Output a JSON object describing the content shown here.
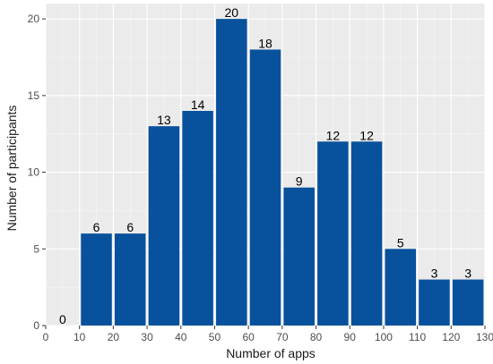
{
  "chart_data": {
    "type": "bar",
    "bin_starts": [
      0,
      10,
      20,
      30,
      40,
      50,
      60,
      70,
      80,
      90,
      100,
      110,
      120
    ],
    "bin_width": 10,
    "values": [
      0,
      6,
      6,
      13,
      14,
      20,
      18,
      9,
      12,
      12,
      5,
      3,
      3
    ],
    "data_labels": [
      "0",
      "6",
      "6",
      "13",
      "14",
      "20",
      "18",
      "9",
      "12",
      "12",
      "5",
      "3",
      "3"
    ],
    "xlabel": "Number of apps",
    "ylabel": "Number of participants",
    "xlim": [
      0,
      130
    ],
    "ylim": [
      0,
      21
    ],
    "x_ticks": [
      0,
      10,
      20,
      30,
      40,
      50,
      60,
      70,
      80,
      90,
      100,
      110,
      120,
      130
    ],
    "x_tick_labels": [
      "0",
      "10",
      "20",
      "30",
      "40",
      "50",
      "60",
      "70",
      "80",
      "90",
      "100",
      "110",
      "120",
      "130"
    ],
    "y_ticks": [
      0,
      5,
      10,
      15,
      20
    ],
    "y_tick_labels": [
      "0",
      "5",
      "10",
      "15",
      "20"
    ],
    "grid": true,
    "legend": "none",
    "colors": {
      "bar": "#08519c",
      "panel": "#ebebeb",
      "grid_major": "#ffffff"
    }
  }
}
